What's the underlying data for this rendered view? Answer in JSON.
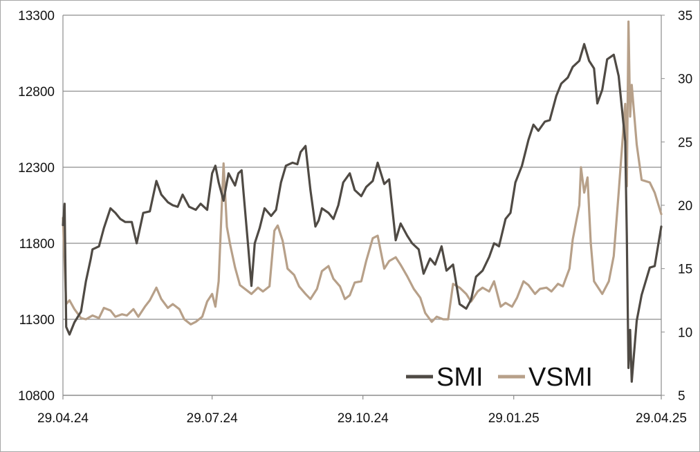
{
  "chart_data": {
    "type": "line",
    "title": "",
    "xlabel": "",
    "ylabel": "",
    "grid": true,
    "legend_position": "bottom-right",
    "x_ticks": [
      "29.04.24",
      "29.07.24",
      "29.10.24",
      "29.01.25",
      "29.04.25"
    ],
    "x_range": [
      "29.04.24",
      "29.04.25"
    ],
    "y_left": {
      "min": 10800,
      "max": 13300,
      "ticks": [
        "13300",
        "12800",
        "12300",
        "11800",
        "11300",
        "10800"
      ]
    },
    "y_right": {
      "min": 5,
      "max": 35,
      "ticks": [
        "35",
        "30",
        "25",
        "20",
        "15",
        "10",
        "5"
      ]
    },
    "series": [
      {
        "name": "SMI",
        "axis": "left",
        "color": "#4f4a44",
        "points": [
          [
            "29.04.24",
            11920
          ],
          [
            "30.04.24",
            12060
          ],
          [
            "01.05.24",
            11250
          ],
          [
            "03.05.24",
            11200
          ],
          [
            "06.05.24",
            11280
          ],
          [
            "10.05.24",
            11350
          ],
          [
            "13.05.24",
            11550
          ],
          [
            "16.05.24",
            11700
          ],
          [
            "17.05.24",
            11760
          ],
          [
            "21.05.24",
            11780
          ],
          [
            "24.05.24",
            11900
          ],
          [
            "28.05.24",
            12030
          ],
          [
            "31.05.24",
            12000
          ],
          [
            "03.06.24",
            11960
          ],
          [
            "06.06.24",
            11940
          ],
          [
            "10.06.24",
            11940
          ],
          [
            "13.06.24",
            11800
          ],
          [
            "17.06.24",
            12000
          ],
          [
            "21.06.24",
            12010
          ],
          [
            "25.06.24",
            12210
          ],
          [
            "28.06.24",
            12120
          ],
          [
            "02.07.24",
            12070
          ],
          [
            "05.07.24",
            12050
          ],
          [
            "08.07.24",
            12040
          ],
          [
            "11.07.24",
            12120
          ],
          [
            "15.07.24",
            12040
          ],
          [
            "19.07.24",
            12020
          ],
          [
            "22.07.24",
            12060
          ],
          [
            "26.07.24",
            12020
          ],
          [
            "29.07.24",
            12260
          ],
          [
            "31.07.24",
            12310
          ],
          [
            "02.08.24",
            12200
          ],
          [
            "05.08.24",
            12080
          ],
          [
            "08.08.24",
            12260
          ],
          [
            "12.08.24",
            12180
          ],
          [
            "14.08.24",
            12260
          ],
          [
            "16.08.24",
            12280
          ],
          [
            "20.08.24",
            11780
          ],
          [
            "22.08.24",
            11520
          ],
          [
            "24.08.24",
            11800
          ],
          [
            "27.08.24",
            11900
          ],
          [
            "30.08.24",
            12030
          ],
          [
            "03.09.24",
            11980
          ],
          [
            "06.09.24",
            12020
          ],
          [
            "09.09.24",
            12200
          ],
          [
            "12.09.24",
            12310
          ],
          [
            "16.09.24",
            12330
          ],
          [
            "19.09.24",
            12320
          ],
          [
            "21.09.24",
            12400
          ],
          [
            "24.09.24",
            12440
          ],
          [
            "27.09.24",
            12150
          ],
          [
            "30.09.24",
            11910
          ],
          [
            "02.10.24",
            11950
          ],
          [
            "04.10.24",
            12030
          ],
          [
            "08.10.24",
            12000
          ],
          [
            "11.10.24",
            11960
          ],
          [
            "14.10.24",
            12050
          ],
          [
            "17.10.24",
            12200
          ],
          [
            "21.10.24",
            12260
          ],
          [
            "24.10.24",
            12150
          ],
          [
            "28.10.24",
            12110
          ],
          [
            "31.10.24",
            12170
          ],
          [
            "04.11.24",
            12210
          ],
          [
            "07.11.24",
            12330
          ],
          [
            "11.11.24",
            12190
          ],
          [
            "14.11.24",
            12220
          ],
          [
            "18.11.24",
            11820
          ],
          [
            "21.11.24",
            11930
          ],
          [
            "25.11.24",
            11850
          ],
          [
            "28.11.24",
            11800
          ],
          [
            "02.12.24",
            11760
          ],
          [
            "05.12.24",
            11600
          ],
          [
            "09.12.24",
            11700
          ],
          [
            "12.12.24",
            11660
          ],
          [
            "16.12.24",
            11780
          ],
          [
            "19.12.24",
            11620
          ],
          [
            "23.12.24",
            11660
          ],
          [
            "27.12.24",
            11400
          ],
          [
            "31.12.24",
            11370
          ],
          [
            "03.01.25",
            11430
          ],
          [
            "06.01.25",
            11580
          ],
          [
            "10.01.25",
            11620
          ],
          [
            "14.01.25",
            11710
          ],
          [
            "17.01.25",
            11800
          ],
          [
            "20.01.25",
            11780
          ],
          [
            "24.01.25",
            11960
          ],
          [
            "27.01.25",
            12000
          ],
          [
            "30.01.25",
            12200
          ],
          [
            "03.02.25",
            12310
          ],
          [
            "07.02.25",
            12480
          ],
          [
            "10.02.25",
            12580
          ],
          [
            "13.02.25",
            12540
          ],
          [
            "17.02.25",
            12600
          ],
          [
            "20.02.25",
            12610
          ],
          [
            "24.02.25",
            12770
          ],
          [
            "27.02.25",
            12850
          ],
          [
            "03.03.25",
            12890
          ],
          [
            "06.03.25",
            12960
          ],
          [
            "10.03.25",
            13000
          ],
          [
            "13.03.25",
            13110
          ],
          [
            "16.03.25",
            13000
          ],
          [
            "19.03.25",
            12950
          ],
          [
            "21.03.25",
            12720
          ],
          [
            "24.03.25",
            12810
          ],
          [
            "27.03.25",
            13010
          ],
          [
            "31.03.25",
            13040
          ],
          [
            "03.04.25",
            12900
          ],
          [
            "07.04.25",
            12470
          ],
          [
            "08.04.25",
            11850
          ],
          [
            "09.04.25",
            10980
          ],
          [
            "10.04.25",
            11230
          ],
          [
            "11.04.25",
            10890
          ],
          [
            "14.04.25",
            11290
          ],
          [
            "17.04.25",
            11460
          ],
          [
            "22.04.25",
            11640
          ],
          [
            "25.04.25",
            11650
          ],
          [
            "29.04.25",
            11910
          ]
        ]
      },
      {
        "name": "VSMI",
        "axis": "right",
        "color": "#b7a089",
        "points": [
          [
            "29.04.24",
            19.0
          ],
          [
            "01.05.24",
            12.2
          ],
          [
            "03.05.24",
            12.5
          ],
          [
            "06.05.24",
            11.8
          ],
          [
            "10.05.24",
            11.1
          ],
          [
            "13.05.24",
            11.0
          ],
          [
            "17.05.24",
            11.3
          ],
          [
            "21.05.24",
            11.1
          ],
          [
            "24.05.24",
            11.9
          ],
          [
            "28.05.24",
            11.7
          ],
          [
            "31.05.24",
            11.2
          ],
          [
            "04.06.24",
            11.4
          ],
          [
            "07.06.24",
            11.3
          ],
          [
            "11.06.24",
            11.8
          ],
          [
            "14.06.24",
            11.2
          ],
          [
            "18.06.24",
            12.0
          ],
          [
            "21.06.24",
            12.5
          ],
          [
            "25.06.24",
            13.5
          ],
          [
            "28.06.24",
            12.6
          ],
          [
            "02.07.24",
            11.9
          ],
          [
            "05.07.24",
            12.2
          ],
          [
            "09.07.24",
            11.8
          ],
          [
            "12.07.24",
            11.0
          ],
          [
            "16.07.24",
            10.6
          ],
          [
            "19.07.24",
            10.8
          ],
          [
            "23.07.24",
            11.2
          ],
          [
            "26.07.24",
            12.4
          ],
          [
            "29.07.24",
            13.0
          ],
          [
            "31.07.24",
            12.0
          ],
          [
            "02.08.24",
            14.0
          ],
          [
            "05.08.24",
            23.3
          ],
          [
            "07.08.24",
            18.3
          ],
          [
            "09.08.24",
            16.9
          ],
          [
            "12.08.24",
            15.1
          ],
          [
            "15.08.24",
            13.7
          ],
          [
            "19.08.24",
            13.3
          ],
          [
            "22.08.24",
            13.0
          ],
          [
            "26.08.24",
            13.5
          ],
          [
            "29.08.24",
            13.2
          ],
          [
            "02.09.24",
            13.6
          ],
          [
            "05.09.24",
            18.0
          ],
          [
            "07.09.24",
            18.4
          ],
          [
            "10.09.24",
            17.2
          ],
          [
            "13.09.24",
            15.0
          ],
          [
            "17.09.24",
            14.5
          ],
          [
            "20.09.24",
            13.6
          ],
          [
            "24.09.24",
            13.0
          ],
          [
            "27.09.24",
            12.6
          ],
          [
            "01.10.24",
            13.4
          ],
          [
            "04.10.24",
            14.8
          ],
          [
            "08.10.24",
            15.2
          ],
          [
            "11.10.24",
            14.2
          ],
          [
            "15.10.24",
            13.6
          ],
          [
            "18.10.24",
            12.6
          ],
          [
            "21.10.24",
            12.9
          ],
          [
            "24.10.24",
            13.9
          ],
          [
            "28.10.24",
            14.0
          ],
          [
            "31.10.24",
            15.6
          ],
          [
            "04.11.24",
            17.4
          ],
          [
            "07.11.24",
            17.6
          ],
          [
            "11.11.24",
            15.0
          ],
          [
            "14.11.24",
            15.6
          ],
          [
            "18.11.24",
            15.9
          ],
          [
            "21.11.24",
            15.3
          ],
          [
            "25.11.24",
            14.4
          ],
          [
            "29.11.24",
            13.4
          ],
          [
            "03.12.24",
            12.7
          ],
          [
            "06.12.24",
            11.5
          ],
          [
            "10.12.24",
            10.8
          ],
          [
            "13.12.24",
            11.2
          ],
          [
            "17.12.24",
            11.0
          ],
          [
            "20.12.24",
            11.0
          ],
          [
            "23.12.24",
            13.8
          ],
          [
            "27.12.24",
            13.5
          ],
          [
            "31.12.24",
            13.0
          ],
          [
            "03.01.25",
            12.4
          ],
          [
            "07.01.25",
            13.2
          ],
          [
            "10.01.25",
            13.5
          ],
          [
            "14.01.25",
            13.2
          ],
          [
            "17.01.25",
            14.0
          ],
          [
            "21.01.25",
            12.0
          ],
          [
            "24.01.25",
            12.3
          ],
          [
            "28.01.25",
            12.0
          ],
          [
            "31.01.25",
            12.7
          ],
          [
            "04.02.25",
            14.0
          ],
          [
            "07.02.25",
            13.7
          ],
          [
            "11.02.25",
            13.0
          ],
          [
            "14.02.25",
            13.4
          ],
          [
            "18.02.25",
            13.5
          ],
          [
            "21.02.25",
            13.2
          ],
          [
            "25.02.25",
            13.8
          ],
          [
            "28.02.25",
            13.6
          ],
          [
            "04.03.25",
            15.0
          ],
          [
            "06.03.25",
            17.3
          ],
          [
            "10.03.25",
            20.0
          ],
          [
            "11.03.25",
            23.0
          ],
          [
            "13.03.25",
            21.0
          ],
          [
            "15.03.25",
            22.2
          ],
          [
            "17.03.25",
            17.0
          ],
          [
            "19.03.25",
            14.0
          ],
          [
            "24.03.25",
            13.0
          ],
          [
            "28.03.25",
            14.0
          ],
          [
            "31.03.25",
            16.0
          ],
          [
            "03.04.25",
            21.0
          ],
          [
            "07.04.25",
            28.0
          ],
          [
            "08.04.25",
            21.5
          ],
          [
            "09.04.25",
            34.5
          ],
          [
            "10.04.25",
            27.0
          ],
          [
            "11.04.25",
            29.5
          ],
          [
            "14.04.25",
            24.8
          ],
          [
            "17.04.25",
            22.0
          ],
          [
            "22.04.25",
            21.8
          ],
          [
            "25.04.25",
            21.0
          ],
          [
            "29.04.25",
            19.3
          ]
        ]
      }
    ],
    "legend": [
      {
        "label": "SMI",
        "color": "#4f4a44"
      },
      {
        "label": "VSMI",
        "color": "#b7a089"
      }
    ]
  }
}
